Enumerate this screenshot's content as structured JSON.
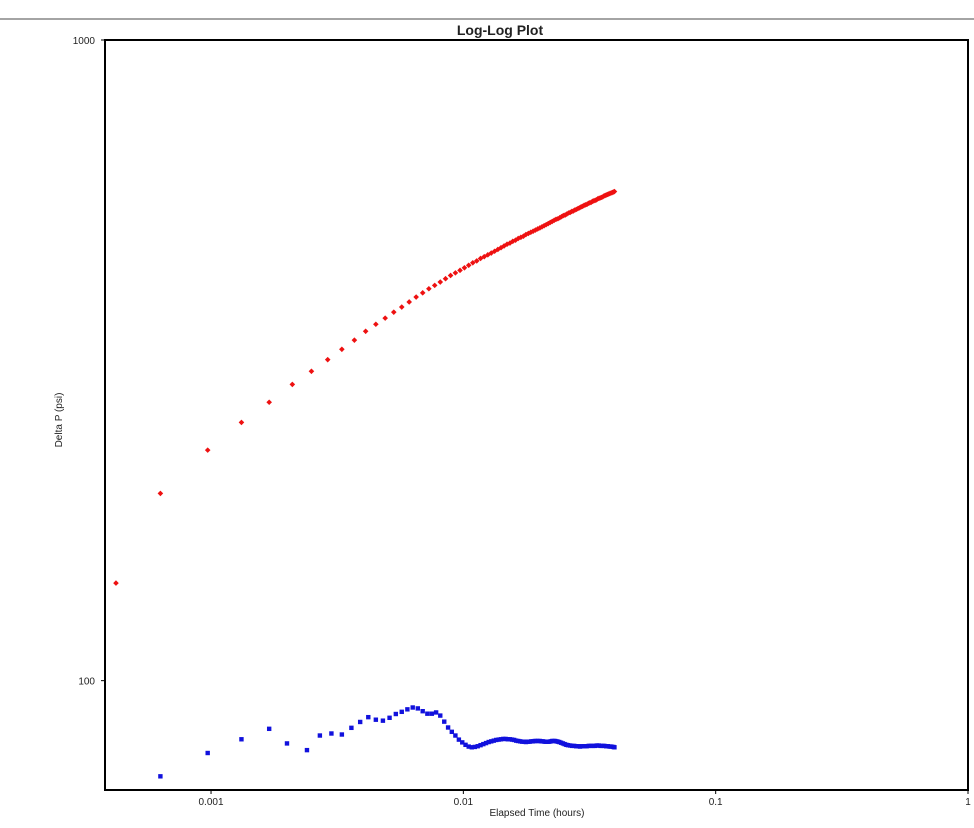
{
  "chart_data": {
    "type": "scatter",
    "title": "Log-Log Plot",
    "xlabel": "Elapsed Time (hours)",
    "ylabel": "Delta P (psi)",
    "x_scale": "log",
    "y_scale": "log",
    "xlim": [
      0.00038,
      1
    ],
    "ylim": [
      67.5,
      1000
    ],
    "x_ticks": [
      {
        "value": 0.001,
        "label": "0.001"
      },
      {
        "value": 0.01,
        "label": "0.01"
      },
      {
        "value": 0.1,
        "label": "0.1"
      },
      {
        "value": 1,
        "label": "1"
      }
    ],
    "y_ticks": [
      {
        "value": 100,
        "label": "100"
      },
      {
        "value": 1000,
        "label": "1000"
      }
    ],
    "grid": false,
    "legend": "none",
    "series": [
      {
        "color": "#ee1111",
        "marker": "diamond",
        "points": [
          [
            0.00042,
            142
          ],
          [
            0.00063,
            196
          ],
          [
            0.00097,
            229
          ],
          [
            0.00132,
            253
          ],
          [
            0.0017,
            272
          ],
          [
            0.0021,
            290
          ],
          [
            0.0025,
            304
          ],
          [
            0.0029,
            317
          ],
          [
            0.0033,
            329
          ],
          [
            0.0037,
            340
          ],
          [
            0.0041,
            351
          ],
          [
            0.0045,
            360
          ],
          [
            0.0049,
            368
          ],
          [
            0.0053,
            376
          ],
          [
            0.0057,
            383
          ],
          [
            0.0061,
            390
          ],
          [
            0.0065,
            397
          ],
          [
            0.0069,
            403
          ],
          [
            0.0073,
            409
          ],
          [
            0.0077,
            414
          ],
          [
            0.0081,
            419
          ],
          [
            0.0085,
            424
          ],
          [
            0.0089,
            429
          ],
          [
            0.0093,
            433
          ],
          [
            0.0097,
            437
          ],
          [
            0.0101,
            441
          ],
          [
            0.0105,
            445
          ],
          [
            0.0109,
            449
          ],
          [
            0.0113,
            452
          ],
          [
            0.0117,
            456
          ],
          [
            0.0121,
            459
          ],
          [
            0.0125,
            462
          ],
          [
            0.0129,
            465
          ],
          [
            0.0133,
            468
          ],
          [
            0.0137,
            471
          ],
          [
            0.0141,
            474
          ],
          [
            0.0145,
            477
          ],
          [
            0.0149,
            480
          ],
          [
            0.0153,
            482
          ],
          [
            0.0157,
            485
          ],
          [
            0.0161,
            487
          ],
          [
            0.0165,
            490
          ],
          [
            0.0169,
            492
          ],
          [
            0.0173,
            494
          ],
          [
            0.0177,
            497
          ],
          [
            0.0181,
            499
          ],
          [
            0.0185,
            501
          ],
          [
            0.0189,
            503
          ],
          [
            0.0193,
            505
          ],
          [
            0.0197,
            507
          ],
          [
            0.0201,
            509
          ],
          [
            0.0205,
            511
          ],
          [
            0.0209,
            513
          ],
          [
            0.0213,
            515
          ],
          [
            0.0217,
            517
          ],
          [
            0.0221,
            519
          ],
          [
            0.0225,
            521
          ],
          [
            0.0229,
            523
          ],
          [
            0.0233,
            525
          ],
          [
            0.0237,
            526
          ],
          [
            0.0241,
            528
          ],
          [
            0.0245,
            530
          ],
          [
            0.0249,
            532
          ],
          [
            0.0253,
            533
          ],
          [
            0.0257,
            535
          ],
          [
            0.0261,
            537
          ],
          [
            0.0265,
            538
          ],
          [
            0.0269,
            540
          ],
          [
            0.0273,
            541
          ],
          [
            0.0277,
            543
          ],
          [
            0.0281,
            544
          ],
          [
            0.0285,
            546
          ],
          [
            0.0289,
            547
          ],
          [
            0.0293,
            549
          ],
          [
            0.0297,
            550
          ],
          [
            0.0301,
            552
          ],
          [
            0.0305,
            553
          ],
          [
            0.0309,
            554
          ],
          [
            0.0313,
            556
          ],
          [
            0.0317,
            557
          ],
          [
            0.0321,
            558
          ],
          [
            0.0325,
            560
          ],
          [
            0.0329,
            561
          ],
          [
            0.0333,
            562
          ],
          [
            0.0337,
            563
          ],
          [
            0.0341,
            565
          ],
          [
            0.0345,
            566
          ],
          [
            0.0349,
            567
          ],
          [
            0.0353,
            568
          ],
          [
            0.0357,
            569
          ],
          [
            0.0361,
            571
          ],
          [
            0.0365,
            572
          ],
          [
            0.0369,
            573
          ],
          [
            0.0373,
            574
          ],
          [
            0.0377,
            575
          ],
          [
            0.0381,
            576
          ],
          [
            0.0385,
            577
          ],
          [
            0.0389,
            578
          ],
          [
            0.0393,
            579
          ],
          [
            0.0397,
            580
          ]
        ]
      },
      {
        "color": "#1111dd",
        "marker": "square",
        "points": [
          [
            0.00063,
            70.9
          ],
          [
            0.00097,
            77.1
          ],
          [
            0.00132,
            81.0
          ],
          [
            0.0017,
            84.1
          ],
          [
            0.002,
            79.8
          ],
          [
            0.0024,
            77.9
          ],
          [
            0.0027,
            82.1
          ],
          [
            0.003,
            82.7
          ],
          [
            0.0033,
            82.4
          ],
          [
            0.0036,
            84.4
          ],
          [
            0.0039,
            86.2
          ],
          [
            0.0042,
            87.7
          ],
          [
            0.0045,
            86.9
          ],
          [
            0.0048,
            86.6
          ],
          [
            0.0051,
            87.5
          ],
          [
            0.0054,
            88.7
          ],
          [
            0.0057,
            89.4
          ],
          [
            0.006,
            90.2
          ],
          [
            0.0063,
            90.8
          ],
          [
            0.0066,
            90.5
          ],
          [
            0.0069,
            89.6
          ],
          [
            0.0072,
            88.8
          ],
          [
            0.0075,
            88.8
          ],
          [
            0.0078,
            89.2
          ],
          [
            0.0081,
            88.2
          ],
          [
            0.0084,
            86.3
          ],
          [
            0.0087,
            84.5
          ],
          [
            0.009,
            83.2
          ],
          [
            0.0093,
            82.1
          ],
          [
            0.0096,
            80.9
          ],
          [
            0.0099,
            80.1
          ],
          [
            0.0102,
            79.4
          ],
          [
            0.0105,
            78.9
          ],
          [
            0.0108,
            78.7
          ],
          [
            0.0111,
            78.8
          ],
          [
            0.0114,
            79.0
          ],
          [
            0.0117,
            79.3
          ],
          [
            0.012,
            79.6
          ],
          [
            0.0123,
            79.9
          ],
          [
            0.0126,
            80.2
          ],
          [
            0.0129,
            80.4
          ],
          [
            0.0132,
            80.6
          ],
          [
            0.0135,
            80.8
          ],
          [
            0.0138,
            80.9
          ],
          [
            0.0141,
            81.0
          ],
          [
            0.0144,
            81.1
          ],
          [
            0.0147,
            81.1
          ],
          [
            0.015,
            81.0
          ],
          [
            0.0153,
            81.0
          ],
          [
            0.0156,
            80.9
          ],
          [
            0.0159,
            80.8
          ],
          [
            0.0162,
            80.6
          ],
          [
            0.0165,
            80.5
          ],
          [
            0.0168,
            80.4
          ],
          [
            0.0171,
            80.3
          ],
          [
            0.0174,
            80.3
          ],
          [
            0.0177,
            80.2
          ],
          [
            0.018,
            80.3
          ],
          [
            0.0183,
            80.3
          ],
          [
            0.0186,
            80.4
          ],
          [
            0.0189,
            80.4
          ],
          [
            0.0192,
            80.5
          ],
          [
            0.0195,
            80.5
          ],
          [
            0.0198,
            80.5
          ],
          [
            0.0201,
            80.5
          ],
          [
            0.0204,
            80.4
          ],
          [
            0.0207,
            80.4
          ],
          [
            0.021,
            80.3
          ],
          [
            0.0213,
            80.3
          ],
          [
            0.0216,
            80.3
          ],
          [
            0.0219,
            80.3
          ],
          [
            0.0222,
            80.4
          ],
          [
            0.0225,
            80.5
          ],
          [
            0.0228,
            80.5
          ],
          [
            0.0231,
            80.5
          ],
          [
            0.0234,
            80.4
          ],
          [
            0.0237,
            80.3
          ],
          [
            0.024,
            80.2
          ],
          [
            0.0244,
            80.0
          ],
          [
            0.0248,
            79.8
          ],
          [
            0.0252,
            79.6
          ],
          [
            0.0256,
            79.4
          ],
          [
            0.026,
            79.3
          ],
          [
            0.0265,
            79.2
          ],
          [
            0.027,
            79.1
          ],
          [
            0.0275,
            79.1
          ],
          [
            0.028,
            79.0
          ],
          [
            0.0285,
            79.0
          ],
          [
            0.029,
            78.9
          ],
          [
            0.0296,
            79.0
          ],
          [
            0.0302,
            79.0
          ],
          [
            0.0308,
            79.0
          ],
          [
            0.0314,
            79.1
          ],
          [
            0.032,
            79.1
          ],
          [
            0.0326,
            79.1
          ],
          [
            0.0332,
            79.1
          ],
          [
            0.0338,
            79.2
          ],
          [
            0.0344,
            79.2
          ],
          [
            0.035,
            79.1
          ],
          [
            0.0356,
            79.1
          ],
          [
            0.0362,
            79.1
          ],
          [
            0.0368,
            79.0
          ],
          [
            0.0374,
            79.0
          ],
          [
            0.038,
            78.9
          ],
          [
            0.0386,
            78.9
          ],
          [
            0.0393,
            78.8
          ],
          [
            0.0397,
            78.7
          ]
        ]
      }
    ]
  }
}
